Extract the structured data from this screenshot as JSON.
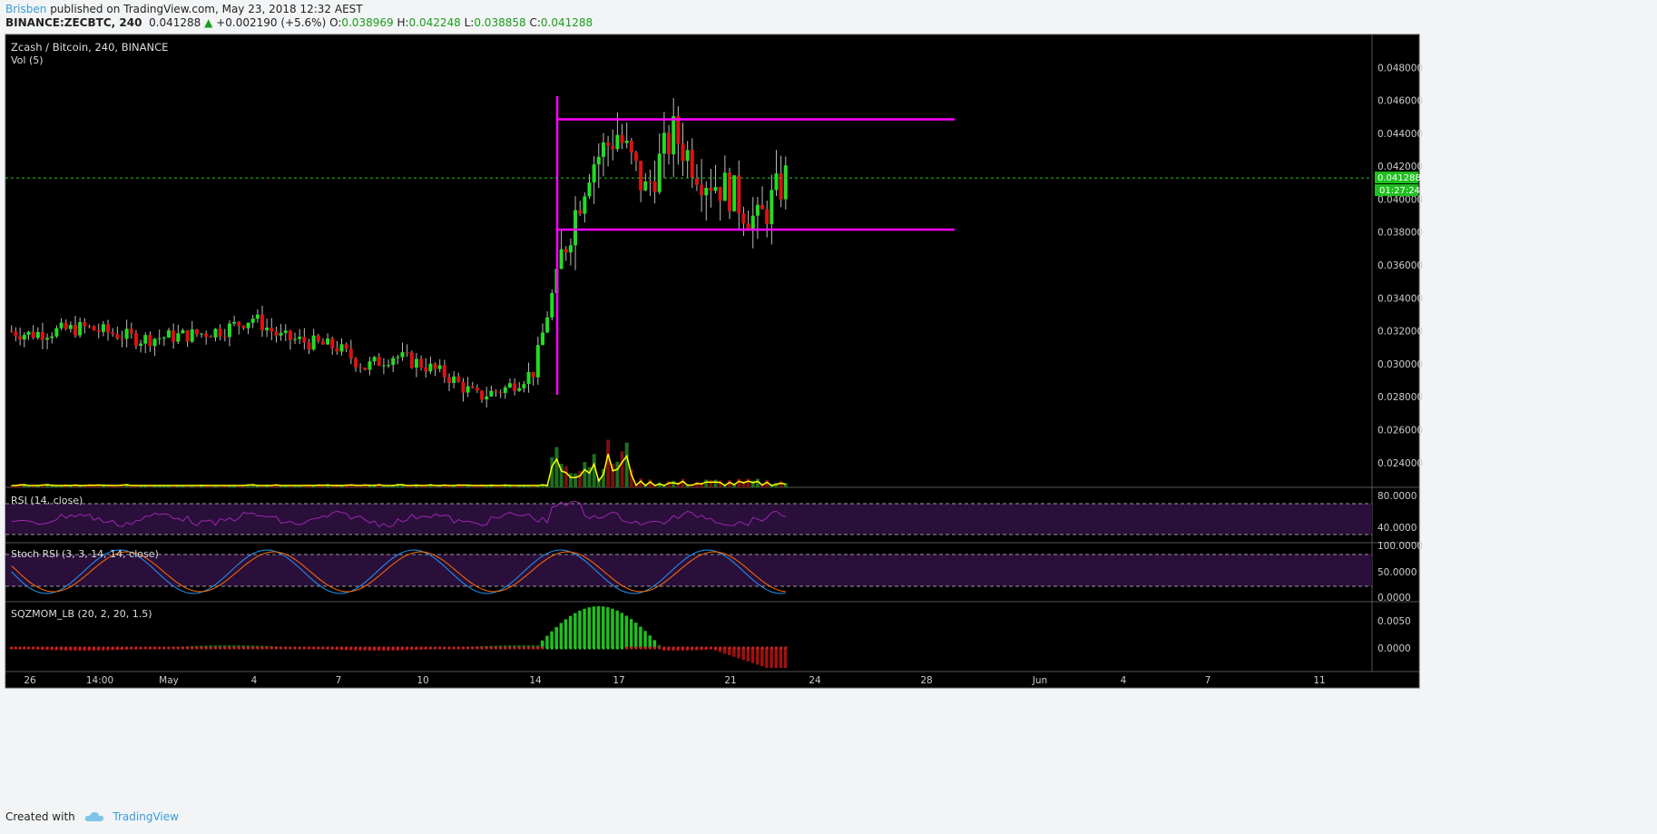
{
  "header": {
    "author": "Brisben",
    "published_text": "published on TradingView.com, May 23, 2018 12:32 AEST",
    "symbol": "BINANCE:ZECBTC, 240",
    "last": "0.041288",
    "change": "+0.002190 (+5.6%)",
    "o_label": "O:",
    "o_value": "0.038969",
    "h_label": "H:",
    "h_value": "0.042248",
    "l_label": "L:",
    "l_value": "0.038858",
    "c_label": "C:",
    "c_value": "0.041288"
  },
  "footer": {
    "created_with": "Created with",
    "brand": "TradingView"
  },
  "colors": {
    "bg": "#000000",
    "up": "#22dd22",
    "down": "#dd1111",
    "box": "#ff00ff",
    "price_line": "#22cc22",
    "vol_ma": "#ffff00",
    "rsi": "#9c27b0",
    "stoch_k": "#2196f3",
    "stoch_d": "#ff6d00",
    "band": "#2a0f3a"
  },
  "chart_data": {
    "type": "candlestick",
    "title": "Zcash / Bitcoin, 240, BINANCE",
    "volume_label": "Vol (5)",
    "timeframe": "240",
    "x_ticks": [
      "26",
      "14:00",
      "May",
      "4",
      "7",
      "10",
      "14",
      "17",
      "21",
      "24",
      "28",
      "Jun",
      "4",
      "7",
      "11"
    ],
    "y_ticks": [
      "0.048000",
      "0.046000",
      "0.044000",
      "0.042000",
      "0.040000",
      "0.038000",
      "0.036000",
      "0.034000",
      "0.032000",
      "0.030000",
      "0.028000",
      "0.026000",
      "0.024000"
    ],
    "ylim": [
      0.0225,
      0.05
    ],
    "current_price": "0.041288",
    "countdown": "01:27:24",
    "range_box": {
      "top": 0.04485,
      "bottom": 0.03815,
      "from_date": "May 14",
      "to_date": "May 29"
    },
    "close_path": [
      {
        "date": "Apr 25",
        "close": 0.032
      },
      {
        "date": "Apr 26",
        "close": 0.0318
      },
      {
        "date": "Apr 28",
        "close": 0.0322
      },
      {
        "date": "Apr 30",
        "close": 0.0315
      },
      {
        "date": "May 2",
        "close": 0.0318
      },
      {
        "date": "May 3",
        "close": 0.0321
      },
      {
        "date": "May 4",
        "close": 0.0328
      },
      {
        "date": "May 5",
        "close": 0.0316
      },
      {
        "date": "May 7",
        "close": 0.031
      },
      {
        "date": "May 8",
        "close": 0.0298
      },
      {
        "date": "May 9",
        "close": 0.0305
      },
      {
        "date": "May 10",
        "close": 0.03
      },
      {
        "date": "May 11",
        "close": 0.0292
      },
      {
        "date": "May 12",
        "close": 0.028
      },
      {
        "date": "May 13",
        "close": 0.0285
      },
      {
        "date": "May 14",
        "close": 0.0295
      },
      {
        "date": "May 15",
        "close": 0.0365
      },
      {
        "date": "May 16",
        "close": 0.042
      },
      {
        "date": "May 17",
        "close": 0.044
      },
      {
        "date": "May 18",
        "close": 0.0405
      },
      {
        "date": "May 19",
        "close": 0.044
      },
      {
        "date": "May 20",
        "close": 0.0415
      },
      {
        "date": "May 21",
        "close": 0.0405
      },
      {
        "date": "May 22",
        "close": 0.0385
      },
      {
        "date": "May 23",
        "close": 0.041288
      }
    ],
    "indicators": [
      {
        "name": "RSI (14, close)",
        "ticks": [
          "80.0000",
          "40.0000"
        ],
        "band": [
          30,
          70
        ]
      },
      {
        "name": "Stoch RSI (3, 3, 14, 14, close)",
        "ticks": [
          "100.0000",
          "50.0000",
          "0.0000"
        ],
        "band": [
          20,
          80
        ]
      },
      {
        "name": "SQZMOM_LB (20, 2, 20, 1.5)",
        "ticks": [
          "0.0050",
          "0.0000"
        ]
      }
    ]
  }
}
